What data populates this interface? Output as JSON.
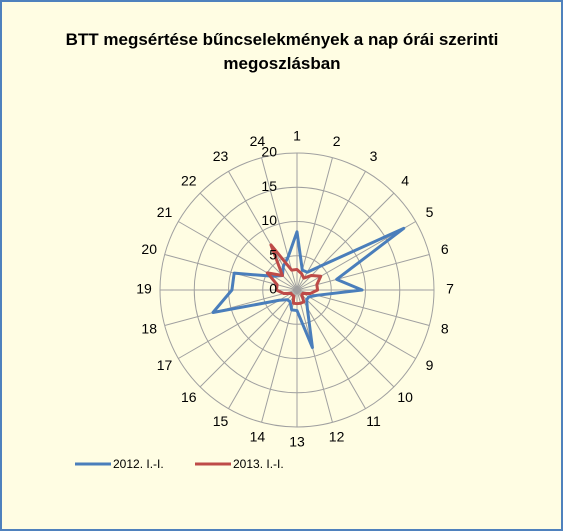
{
  "chart_data": {
    "type": "radar",
    "title": "BTT megsértése bűncselekmények a nap órái szerinti megoszlásban",
    "categories": [
      "1",
      "2",
      "3",
      "4",
      "5",
      "6",
      "7",
      "8",
      "9",
      "10",
      "11",
      "12",
      "13",
      "14",
      "15",
      "16",
      "17",
      "18",
      "19",
      "20",
      "21",
      "22",
      "23",
      "24"
    ],
    "series": [
      {
        "name": "2012. I.-I.",
        "color": "#4a7ebb",
        "values": [
          8.5,
          3,
          3,
          5,
          18,
          6,
          9.5,
          3,
          2,
          2,
          3,
          8.7,
          3,
          3,
          2,
          2,
          3,
          12.7,
          9.5,
          9.5,
          4,
          3,
          4,
          5
        ]
      },
      {
        "name": "2013. I.-I.",
        "color": "#be4b48",
        "values": [
          3,
          2.5,
          2,
          3,
          4,
          3,
          3,
          2,
          1,
          1,
          2,
          2,
          2,
          2,
          1,
          1,
          1,
          2,
          3,
          3,
          5,
          3,
          7.6,
          3
        ]
      }
    ],
    "ylim": [
      0,
      20
    ],
    "yticks": [
      0,
      5,
      10,
      15,
      20
    ],
    "grid": true,
    "legend": "bottom"
  }
}
